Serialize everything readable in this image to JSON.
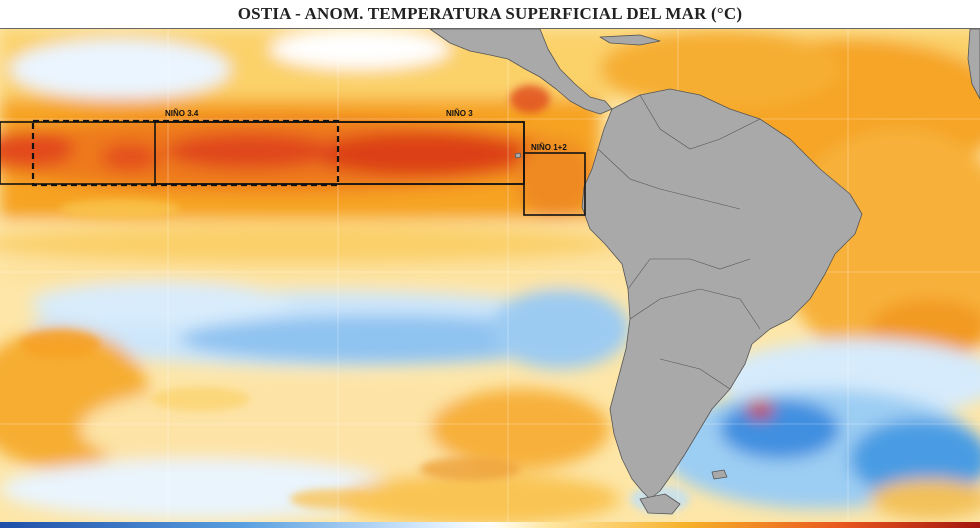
{
  "title": "OSTIA - ANOM. TEMPERATURA SUPERFICIAL DEL MAR (°C)",
  "regions": {
    "nino34": "NIÑO 3.4",
    "nino3": "NIÑO 3",
    "nino12": "NIÑO 1+2"
  },
  "colors": {
    "land": "#a9a9a9",
    "strong_warm": "#d8341a",
    "warm": "#f39a1c",
    "mild_warm": "#fbc94a",
    "neutral": "#fff3cf",
    "cool": "#bfe0f8",
    "cold": "#3f93e0"
  },
  "colorbar": {
    "low_color": "#1f4fa8",
    "high_color": "#a3160f"
  }
}
